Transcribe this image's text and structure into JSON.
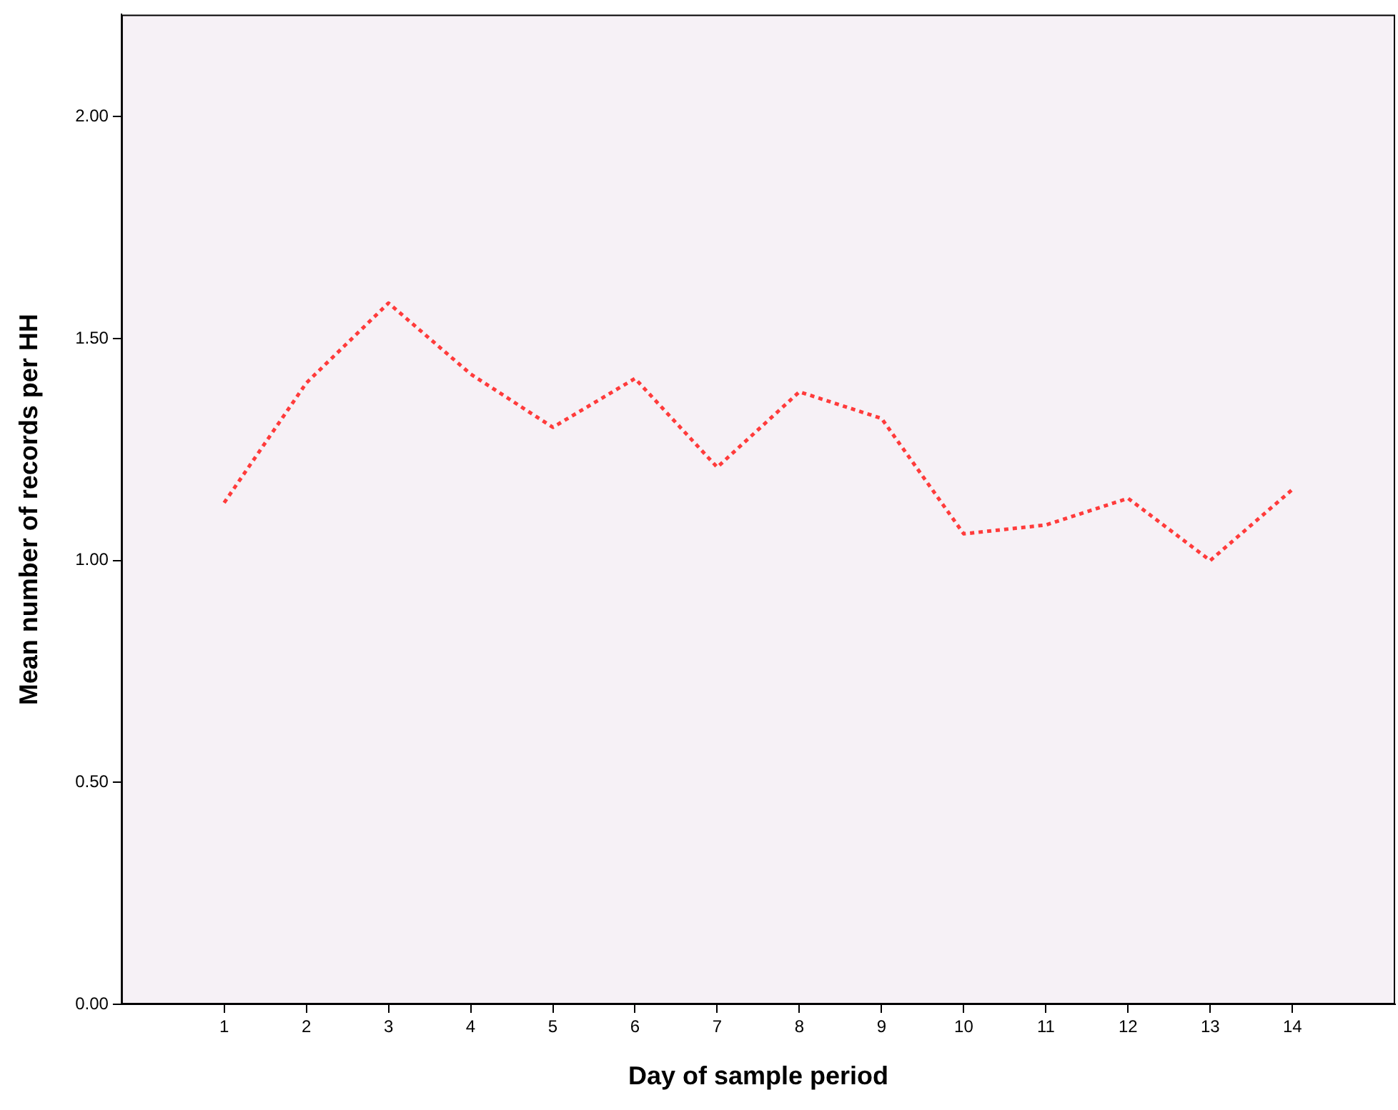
{
  "chart_data": {
    "type": "line",
    "xlabel": "Day of sample period",
    "ylabel": "Mean number of records per HH",
    "x": [
      1,
      2,
      3,
      4,
      5,
      6,
      7,
      8,
      9,
      10,
      11,
      12,
      13,
      14
    ],
    "series": [
      {
        "color": "#ff3b3b",
        "values": [
          1.13,
          1.4,
          1.58,
          1.42,
          1.3,
          1.41,
          1.21,
          1.38,
          1.32,
          1.06,
          1.08,
          1.14,
          1.0,
          1.16
        ]
      }
    ],
    "xlim": [
      -0.25,
      15.25
    ],
    "xticks": [
      1,
      2,
      3,
      4,
      5,
      6,
      7,
      8,
      9,
      10,
      11,
      12,
      13,
      14
    ],
    "ylim": [
      0,
      2.23
    ],
    "yticks": [
      {
        "value": 0,
        "label": "0.00"
      },
      {
        "value": 0.5,
        "label": "0.50"
      },
      {
        "value": 1,
        "label": "1.00"
      },
      {
        "value": 1.5,
        "label": "1.50"
      },
      {
        "value": 2,
        "label": "2.00"
      }
    ],
    "grid": false,
    "legend": false,
    "marker": "none",
    "line_style": "dotted"
  }
}
